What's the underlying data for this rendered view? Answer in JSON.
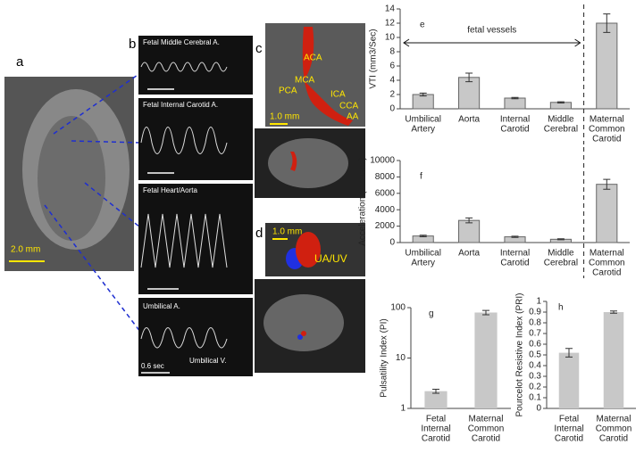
{
  "images": {
    "a": {
      "label": "a",
      "scale": "2.0 mm"
    },
    "b": {
      "label": "b",
      "traces": [
        "Fetal Middle Cerebral A.",
        "Fetal Internal Carotid A.",
        "Fetal Heart/Aorta",
        "Umbilical A."
      ],
      "umbilical_v": "Umbilical V.",
      "scale": "0.6 sec"
    },
    "c": {
      "label": "c",
      "vessels": [
        "ACA",
        "MCA",
        "PCA",
        "ICA",
        "CCA",
        "AA"
      ],
      "scale": "1.0 mm"
    },
    "d": {
      "label": "d",
      "scale": "1.0 mm",
      "vessel": "UA/UV"
    }
  },
  "chart_data": [
    {
      "type": "bar",
      "label": "e",
      "annotation": "fetal vessels",
      "y_label": "VTI (mm3/Sec)",
      "categories": [
        [
          "Umbilical",
          "Artery"
        ],
        [
          "Aorta"
        ],
        [
          "Internal",
          "Carotid"
        ],
        [
          "Middle",
          "Cerebral"
        ],
        [
          "Maternal",
          "Common",
          "Carotid"
        ]
      ],
      "values": [
        2.0,
        4.4,
        1.5,
        0.9,
        12.0
      ],
      "errors": [
        0.2,
        0.6,
        0.1,
        0.08,
        1.3
      ],
      "ylim": [
        0,
        14
      ],
      "yticks": [
        0,
        2,
        4,
        6,
        8,
        10,
        12,
        14
      ],
      "color": "#c8c8c8",
      "log": false
    },
    {
      "type": "bar",
      "label": "f",
      "y_label": "Acceleration (mm/sec)",
      "categories": [
        [
          "Umbilical",
          "Artery"
        ],
        [
          "Aorta"
        ],
        [
          "Internal",
          "Carotid"
        ],
        [
          "Middle",
          "Cerebral"
        ],
        [
          "Maternal",
          "Common",
          "Carotid"
        ]
      ],
      "values": [
        800,
        2700,
        700,
        400,
        7100
      ],
      "errors": [
        100,
        300,
        80,
        60,
        600
      ],
      "ylim": [
        0,
        10000
      ],
      "yticks": [
        0,
        2000,
        4000,
        6000,
        8000,
        10000
      ],
      "color": "#c8c8c8",
      "log": false
    },
    {
      "type": "bar",
      "label": "g",
      "y_label": "Pulsatility Index (PI)",
      "categories": [
        [
          "Fetal",
          "Internal",
          "Carotid"
        ],
        [
          "Maternal",
          "Common",
          "Carotid"
        ]
      ],
      "values": [
        2.2,
        80
      ],
      "errors": [
        0.2,
        8
      ],
      "ylim": [
        1,
        100
      ],
      "yticks": [
        1,
        10,
        100
      ],
      "color": "#c8c8c8",
      "log": true
    },
    {
      "type": "bar",
      "label": "h",
      "y_label": "Pourcelot Resistive Index (PRI)",
      "categories": [
        [
          "Fetal",
          "Internal",
          "Carotid"
        ],
        [
          "Maternal",
          "Common",
          "Carotid"
        ]
      ],
      "values": [
        0.52,
        0.9
      ],
      "errors": [
        0.04,
        0.01
      ],
      "ylim": [
        0,
        1
      ],
      "yticks": [
        0,
        0.1,
        0.2,
        0.3,
        0.4,
        0.5,
        0.6,
        0.7,
        0.8,
        0.9,
        1
      ],
      "color": "#c8c8c8",
      "log": false
    }
  ]
}
